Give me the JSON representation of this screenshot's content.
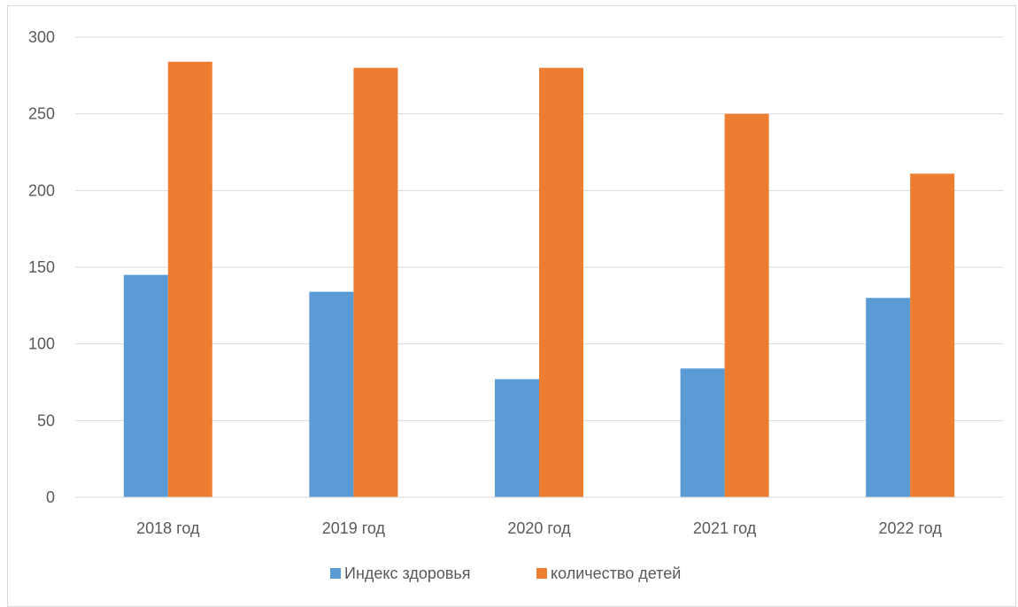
{
  "chart_data": {
    "type": "bar",
    "title": "",
    "xlabel": "",
    "ylabel": "",
    "categories": [
      "2018 год",
      "2019 год",
      "2020 год",
      "2021 год",
      "2022 год"
    ],
    "series": [
      {
        "name": "Индекс здоровья",
        "color": "#5b9bd5",
        "values": [
          145,
          134,
          77,
          84,
          130
        ]
      },
      {
        "name": "количество детей",
        "color": "#ed7d31",
        "values": [
          284,
          280,
          280,
          250,
          211
        ]
      }
    ],
    "ylim": [
      0,
      300
    ],
    "yticks": [
      "0",
      "50",
      "100",
      "150",
      "200",
      "250",
      "300"
    ],
    "grid": true,
    "legend_position": "bottom"
  }
}
